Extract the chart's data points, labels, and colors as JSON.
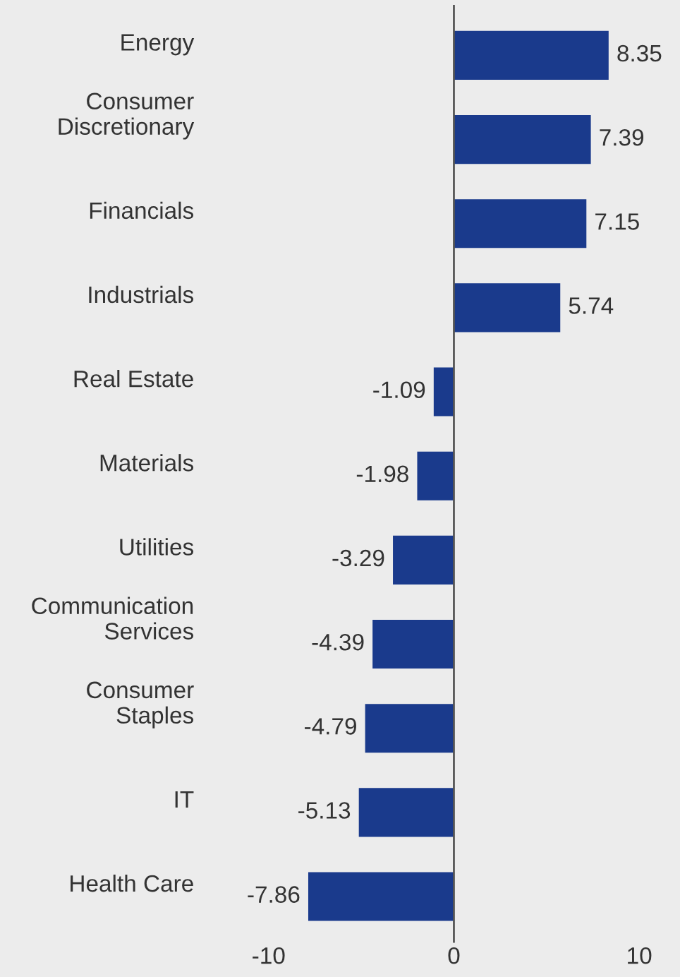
{
  "chart_data": {
    "type": "bar",
    "orientation": "horizontal",
    "categories": [
      "Energy",
      "Consumer\nDiscretionary",
      "Financials",
      "Industrials",
      "Real Estate",
      "Materials",
      "Utilities",
      "Communication\nServices",
      "Consumer\nStaples",
      "IT",
      "Health Care"
    ],
    "values": [
      8.35,
      7.39,
      7.15,
      5.74,
      -1.09,
      -1.98,
      -3.29,
      -4.39,
      -4.79,
      -5.13,
      -7.86
    ],
    "color": "#1a3a8c",
    "xlim": [
      -10,
      10
    ],
    "xticks": [
      -10,
      0,
      10
    ],
    "ref_lines": [
      {
        "axis": "x",
        "value": 0,
        "color": "#555555"
      }
    ],
    "data_labels": true,
    "grid": false,
    "legend": false
  }
}
